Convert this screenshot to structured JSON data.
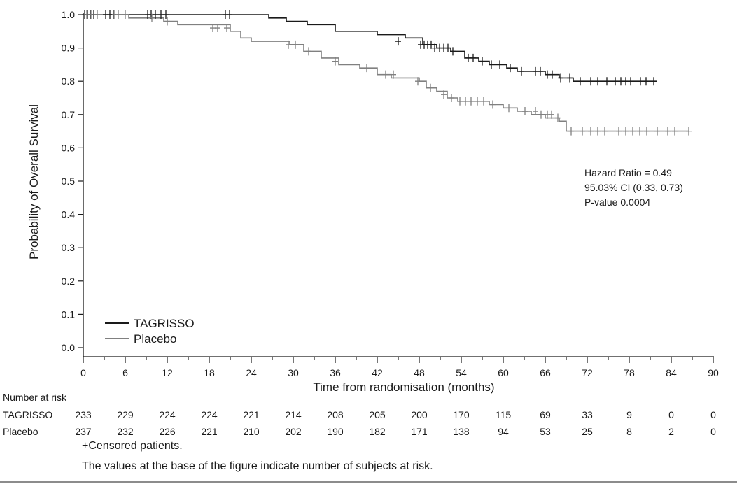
{
  "chart_data": {
    "type": "line",
    "ylabel": "Probability of Overall Survival",
    "xlabel": "Time from randomisation (months)",
    "xlim": [
      0,
      90
    ],
    "ylim": [
      0.0,
      1.0
    ],
    "xticks": [
      "0",
      "6",
      "12",
      "18",
      "24",
      "30",
      "36",
      "42",
      "48",
      "54",
      "60",
      "66",
      "72",
      "78",
      "84",
      "90"
    ],
    "yticks": [
      "0.0",
      "0.1",
      "0.2",
      "0.3",
      "0.4",
      "0.5",
      "0.6",
      "0.7",
      "0.8",
      "0.9",
      "1.0"
    ],
    "legend": [
      "TAGRISSO",
      "Placebo"
    ],
    "legend_position": "bottom-left",
    "series": [
      {
        "name": "TAGRISSO",
        "color": "#1a1a1a",
        "x": [
          0,
          22.2,
          26.5,
          29,
          32,
          36,
          42,
          46,
          48.5,
          50.5,
          52.5,
          54.5,
          56.5,
          58,
          60.5,
          62,
          64,
          66,
          68,
          70,
          82
        ],
        "y": [
          1.0,
          1.0,
          0.99,
          0.98,
          0.97,
          0.95,
          0.94,
          0.93,
          0.91,
          0.9,
          0.89,
          0.87,
          0.86,
          0.85,
          0.84,
          0.83,
          0.83,
          0.82,
          0.81,
          0.8,
          0.8
        ],
        "censored_x": [
          0.2,
          0.6,
          1.0,
          1.5,
          3.2,
          3.8,
          4.3,
          9.2,
          9.7,
          10.3,
          11.1,
          11.8,
          20.3,
          20.9,
          45.0,
          48.2,
          48.7,
          49.2,
          49.7,
          50.2,
          50.9,
          51.5,
          52.1,
          52.8,
          55.0,
          55.7,
          57.0,
          58.3,
          59.5,
          61.0,
          62.6,
          64.6,
          65.3,
          66.3,
          67.0,
          68.2,
          69.5,
          71.0,
          72.5,
          73.5,
          74.8,
          76.0,
          76.8,
          77.5,
          78.2,
          79.6,
          80.4,
          81.5
        ],
        "censored_y": [
          1.0,
          1.0,
          1.0,
          1.0,
          1.0,
          1.0,
          1.0,
          1.0,
          1.0,
          1.0,
          1.0,
          1.0,
          1.0,
          1.0,
          0.92,
          0.91,
          0.91,
          0.91,
          0.91,
          0.9,
          0.9,
          0.9,
          0.9,
          0.89,
          0.87,
          0.87,
          0.86,
          0.85,
          0.85,
          0.84,
          0.83,
          0.83,
          0.83,
          0.82,
          0.82,
          0.81,
          0.81,
          0.8,
          0.8,
          0.8,
          0.8,
          0.8,
          0.8,
          0.8,
          0.8,
          0.8,
          0.8,
          0.8
        ]
      },
      {
        "name": "Placebo",
        "color": "#808080",
        "x": [
          0,
          6.5,
          9,
          11.5,
          13.5,
          16,
          21,
          22.5,
          24,
          27,
          29.5,
          31.5,
          34,
          36.5,
          39.5,
          42,
          44,
          46,
          48,
          49,
          50.5,
          52,
          53.5,
          55,
          58,
          60,
          62,
          64,
          66,
          68,
          69,
          86.5
        ],
        "y": [
          1.0,
          0.99,
          0.99,
          0.98,
          0.97,
          0.97,
          0.95,
          0.93,
          0.92,
          0.92,
          0.91,
          0.89,
          0.87,
          0.85,
          0.84,
          0.82,
          0.81,
          0.81,
          0.8,
          0.78,
          0.77,
          0.75,
          0.74,
          0.74,
          0.73,
          0.72,
          0.71,
          0.7,
          0.69,
          0.68,
          0.65,
          0.65
        ],
        "censored_x": [
          0.5,
          1.1,
          2.0,
          4.5,
          5.0,
          6.0,
          9.8,
          12.0,
          18.5,
          19.2,
          20.5,
          29.3,
          30.3,
          32.2,
          36.0,
          40.5,
          43.2,
          44.3,
          47.8,
          49.6,
          51.5,
          52.6,
          53.8,
          54.6,
          55.4,
          56.3,
          57.2,
          58.5,
          60.8,
          63.1,
          64.6,
          65.4,
          66.3,
          66.9,
          67.8,
          69.7,
          71.3,
          72.5,
          73.5,
          74.5,
          76.5,
          77.5,
          78.5,
          79.5,
          80.5,
          82.0,
          83.5,
          84.5,
          86.5
        ],
        "censored_y": [
          1.0,
          1.0,
          1.0,
          1.0,
          1.0,
          1.0,
          0.99,
          0.98,
          0.96,
          0.96,
          0.96,
          0.91,
          0.91,
          0.89,
          0.86,
          0.84,
          0.82,
          0.82,
          0.8,
          0.78,
          0.76,
          0.75,
          0.74,
          0.74,
          0.74,
          0.74,
          0.74,
          0.73,
          0.72,
          0.71,
          0.71,
          0.7,
          0.7,
          0.7,
          0.69,
          0.65,
          0.65,
          0.65,
          0.65,
          0.65,
          0.65,
          0.65,
          0.65,
          0.65,
          0.65,
          0.65,
          0.65,
          0.65,
          0.65
        ]
      }
    ],
    "annotation": [
      "Hazard Ratio = 0.49",
      "95.03% CI (0.33, 0.73)",
      "P-value 0.0004"
    ],
    "risk_table": {
      "title": "Number at risk",
      "rows": [
        {
          "label": "TAGRISSO",
          "values": [
            "233",
            "229",
            "224",
            "224",
            "221",
            "214",
            "208",
            "205",
            "200",
            "170",
            "115",
            "69",
            "33",
            "9",
            "0",
            "0"
          ]
        },
        {
          "label": "Placebo",
          "values": [
            "237",
            "232",
            "226",
            "221",
            "210",
            "202",
            "190",
            "182",
            "171",
            "138",
            "94",
            "53",
            "25",
            "8",
            "2",
            "0"
          ]
        }
      ]
    },
    "footnotes": [
      "+Censored patients.",
      "The values at the base of the figure indicate number of subjects at risk."
    ]
  }
}
